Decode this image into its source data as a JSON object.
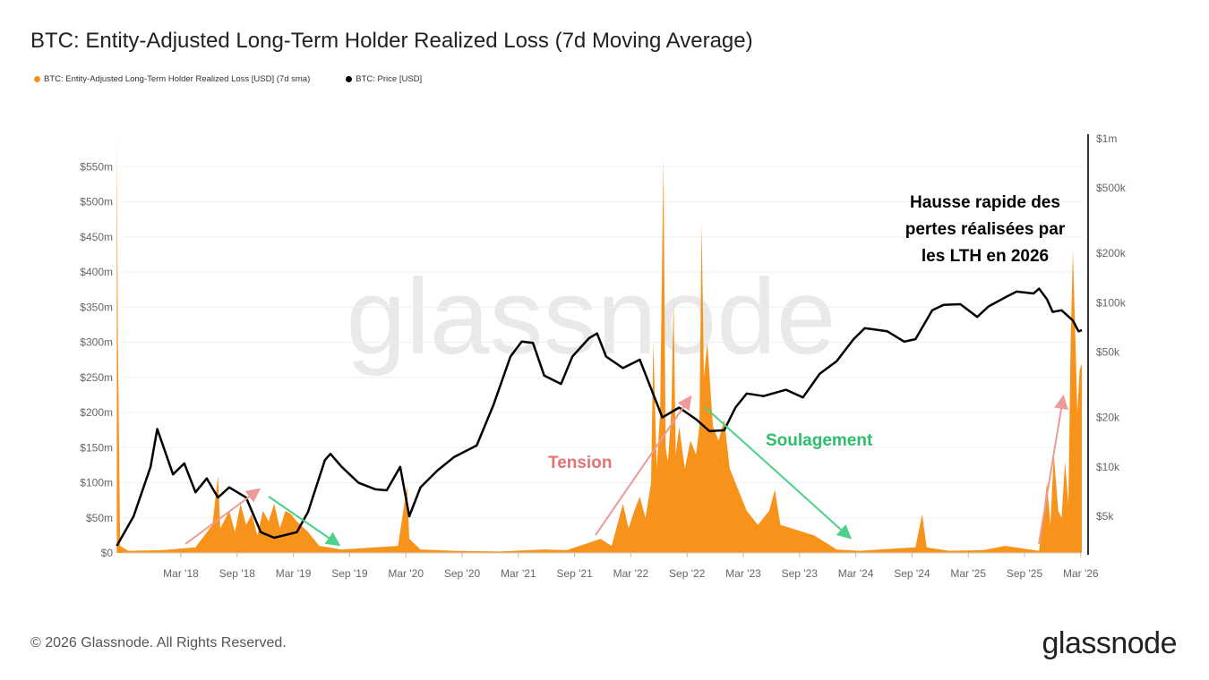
{
  "title": "BTC: Entity-Adjusted Long-Term Holder Realized Loss (7d Moving Average)",
  "legend": [
    {
      "label": "BTC: Entity-Adjusted Long-Term Holder Realized Loss [USD] (7d sma)",
      "color": "#f7931a"
    },
    {
      "label": "BTC: Price [USD]",
      "color": "#000000"
    }
  ],
  "footer": "© 2026 Glassnode. All Rights Reserved.",
  "logo": "glassnode",
  "watermark": "glassnode",
  "chart_data": {
    "type": "area+line",
    "x_unit": "decimal year",
    "xlim": [
      2017.6,
      2026.2
    ],
    "x_ticks": [
      {
        "v": 2018.17,
        "label": "Mar '18"
      },
      {
        "v": 2018.67,
        "label": "Sep '18"
      },
      {
        "v": 2019.17,
        "label": "Mar '19"
      },
      {
        "v": 2019.67,
        "label": "Sep '19"
      },
      {
        "v": 2020.17,
        "label": "Mar '20"
      },
      {
        "v": 2020.67,
        "label": "Sep '20"
      },
      {
        "v": 2021.17,
        "label": "Mar '21"
      },
      {
        "v": 2021.67,
        "label": "Sep '21"
      },
      {
        "v": 2022.17,
        "label": "Mar '22"
      },
      {
        "v": 2022.67,
        "label": "Sep '22"
      },
      {
        "v": 2023.17,
        "label": "Mar '23"
      },
      {
        "v": 2023.67,
        "label": "Sep '23"
      },
      {
        "v": 2024.17,
        "label": "Mar '24"
      },
      {
        "v": 2024.67,
        "label": "Sep '24"
      },
      {
        "v": 2025.17,
        "label": "Mar '25"
      },
      {
        "v": 2025.67,
        "label": "Sep '25"
      },
      {
        "v": 2026.17,
        "label": "Mar '26"
      }
    ],
    "y_left": {
      "ylim": [
        0,
        600
      ],
      "unit": "USD millions",
      "ticks": [
        {
          "v": 0,
          "label": "$0"
        },
        {
          "v": 50,
          "label": "$50m"
        },
        {
          "v": 100,
          "label": "$100m"
        },
        {
          "v": 150,
          "label": "$150m"
        },
        {
          "v": 200,
          "label": "$200m"
        },
        {
          "v": 250,
          "label": "$250m"
        },
        {
          "v": 300,
          "label": "$300m"
        },
        {
          "v": 350,
          "label": "$350m"
        },
        {
          "v": 400,
          "label": "$400m"
        },
        {
          "v": 450,
          "label": "$450m"
        },
        {
          "v": 500,
          "label": "$500m"
        },
        {
          "v": 550,
          "label": "$550m"
        }
      ]
    },
    "y_right": {
      "scale": "log",
      "ylim": [
        3000,
        1000000
      ],
      "ticks": [
        {
          "v": 5000,
          "label": "$5k"
        },
        {
          "v": 10000,
          "label": "$10k"
        },
        {
          "v": 20000,
          "label": "$20k"
        },
        {
          "v": 50000,
          "label": "$50k"
        },
        {
          "v": 100000,
          "label": "$100k"
        },
        {
          "v": 200000,
          "label": "$200k"
        },
        {
          "v": 500000,
          "label": "$500k"
        },
        {
          "v": 1000000,
          "label": "$1m"
        }
      ]
    },
    "series": [
      {
        "name": "BTC: Entity-Adjusted Long-Term Holder Realized Loss [USD] (7d sma)",
        "axis": "left",
        "color": "#f7931a",
        "x": [
          2017.6,
          2017.61,
          2017.63,
          2017.7,
          2018.0,
          2018.3,
          2018.45,
          2018.5,
          2018.52,
          2018.6,
          2018.65,
          2018.7,
          2018.75,
          2018.8,
          2018.85,
          2018.9,
          2018.95,
          2019.0,
          2019.05,
          2019.1,
          2019.15,
          2019.2,
          2019.3,
          2019.4,
          2019.6,
          2019.9,
          2020.1,
          2020.18,
          2020.2,
          2020.3,
          2020.6,
          2021.0,
          2021.4,
          2021.6,
          2021.9,
          2022.0,
          2022.05,
          2022.1,
          2022.15,
          2022.2,
          2022.25,
          2022.3,
          2022.35,
          2022.37,
          2022.4,
          2022.43,
          2022.46,
          2022.48,
          2022.5,
          2022.53,
          2022.55,
          2022.57,
          2022.6,
          2022.65,
          2022.7,
          2022.75,
          2022.78,
          2022.8,
          2022.82,
          2022.85,
          2022.9,
          2022.95,
          2023.0,
          2023.05,
          2023.1,
          2023.2,
          2023.3,
          2023.4,
          2023.45,
          2023.5,
          2023.6,
          2023.7,
          2023.8,
          2023.9,
          2024.0,
          2024.2,
          2024.5,
          2024.7,
          2024.76,
          2024.8,
          2025.0,
          2025.3,
          2025.5,
          2025.8,
          2025.87,
          2025.9,
          2025.93,
          2025.97,
          2026.0,
          2026.03,
          2026.06,
          2026.08,
          2026.1,
          2026.12,
          2026.14,
          2026.16,
          2026.18
        ],
        "y": [
          590,
          300,
          10,
          3,
          4,
          8,
          40,
          110,
          35,
          60,
          30,
          70,
          40,
          55,
          25,
          60,
          45,
          70,
          35,
          60,
          55,
          45,
          30,
          10,
          5,
          8,
          10,
          95,
          20,
          5,
          3,
          2,
          5,
          4,
          20,
          10,
          40,
          70,
          35,
          60,
          80,
          50,
          100,
          300,
          120,
          200,
          560,
          150,
          130,
          200,
          360,
          140,
          180,
          120,
          160,
          140,
          180,
          470,
          250,
          300,
          180,
          160,
          190,
          120,
          100,
          60,
          40,
          60,
          90,
          40,
          35,
          30,
          25,
          15,
          5,
          3,
          6,
          8,
          55,
          8,
          3,
          4,
          10,
          3,
          100,
          40,
          140,
          60,
          50,
          130,
          70,
          300,
          430,
          320,
          200,
          260,
          270
        ]
      },
      {
        "name": "BTC: Price [USD]",
        "axis": "right",
        "color": "#000000",
        "x": [
          2017.6,
          2017.75,
          2017.9,
          2017.96,
          2018.1,
          2018.2,
          2018.3,
          2018.4,
          2018.5,
          2018.6,
          2018.75,
          2018.88,
          2019.0,
          2019.2,
          2019.3,
          2019.45,
          2019.5,
          2019.6,
          2019.75,
          2019.9,
          2020.0,
          2020.12,
          2020.2,
          2020.3,
          2020.45,
          2020.6,
          2020.8,
          2020.95,
          2021.1,
          2021.2,
          2021.3,
          2021.4,
          2021.55,
          2021.65,
          2021.8,
          2021.87,
          2021.95,
          2022.1,
          2022.25,
          2022.35,
          2022.45,
          2022.6,
          2022.75,
          2022.87,
          2023.0,
          2023.1,
          2023.2,
          2023.35,
          2023.55,
          2023.7,
          2023.85,
          2024.0,
          2024.15,
          2024.25,
          2024.45,
          2024.6,
          2024.7,
          2024.85,
          2024.95,
          2025.1,
          2025.25,
          2025.35,
          2025.5,
          2025.6,
          2025.75,
          2025.8,
          2025.87,
          2025.92,
          2026.0,
          2026.1,
          2026.15,
          2026.18
        ],
        "y": [
          3300,
          5000,
          10000,
          17000,
          9000,
          10500,
          7000,
          8500,
          6500,
          7500,
          6500,
          4000,
          3700,
          4000,
          5300,
          11000,
          12000,
          10000,
          8000,
          7300,
          7200,
          10000,
          5000,
          7500,
          9500,
          11500,
          13500,
          24000,
          47000,
          58000,
          57000,
          36000,
          32000,
          47000,
          61000,
          65000,
          47000,
          40000,
          45000,
          30000,
          20000,
          23000,
          19500,
          16500,
          16700,
          23000,
          28000,
          27000,
          29500,
          26500,
          37000,
          44000,
          60000,
          70000,
          67000,
          58000,
          60000,
          90000,
          97000,
          98000,
          82000,
          95000,
          108000,
          117000,
          114000,
          122000,
          105000,
          88000,
          90000,
          78000,
          67000,
          68000
        ]
      }
    ],
    "annotations": [
      {
        "text": "Tension",
        "color": "#e57373"
      },
      {
        "text": "Soulagement",
        "color": "#2ebd6b"
      },
      {
        "text_lines": [
          "Hausse rapide des",
          "pertes réalisées par",
          "les LTH en 2026"
        ],
        "color": "#000000"
      }
    ]
  }
}
